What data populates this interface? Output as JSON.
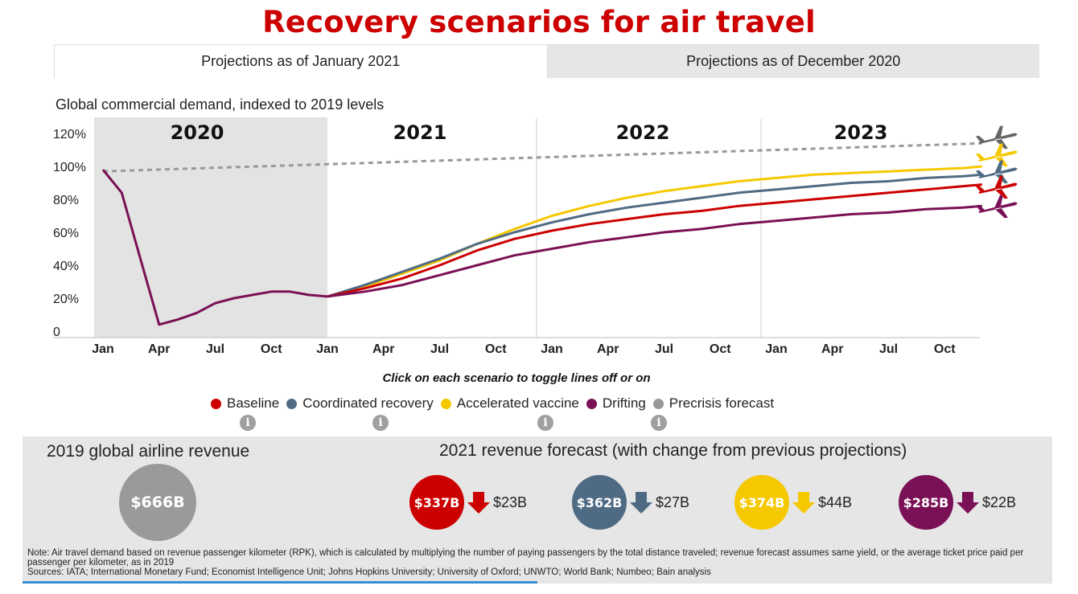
{
  "title": "Recovery scenarios for air travel",
  "tabs": [
    {
      "label": "Projections as of January 2021",
      "active": true
    },
    {
      "label": "Projections as of December 2020",
      "active": false
    }
  ],
  "subtitle": "Global commercial demand, indexed to 2019 levels",
  "hint": "Click on each scenario to toggle lines off or on",
  "legend": [
    {
      "label": "Baseline",
      "color": "#cc0000"
    },
    {
      "label": "Coordinated recovery",
      "color": "#4f6b84"
    },
    {
      "label": "Accelerated vaccine",
      "color": "#f5c800"
    },
    {
      "label": "Drifting",
      "color": "#7a1055"
    },
    {
      "label": "Precrisis forecast",
      "color": "#999999"
    }
  ],
  "info_icon": "i",
  "chart_data": {
    "type": "line",
    "year_labels": [
      "2020",
      "2021",
      "2022",
      "2023"
    ],
    "x_tick_labels": [
      "Jan",
      "Apr",
      "Jul",
      "Oct",
      "Jan",
      "Apr",
      "Jul",
      "Oct",
      "Jan",
      "Apr",
      "Jul",
      "Oct",
      "Jan",
      "Apr",
      "Jul",
      "Oct"
    ],
    "y_tick_labels": [
      "0",
      "20%",
      "40%",
      "60%",
      "80%",
      "100%",
      "120%"
    ],
    "ylim": [
      0,
      125
    ],
    "shaded_period": "2020",
    "x_unit": "months since Jan 2020",
    "historical": {
      "x": [
        0,
        1,
        2,
        3,
        4,
        5,
        6,
        7,
        8,
        9,
        10,
        11,
        12
      ],
      "values": [
        98,
        84,
        44,
        4,
        7,
        11,
        17,
        20,
        22,
        24,
        24,
        22,
        21
      ]
    },
    "series": [
      {
        "name": "Precrisis forecast",
        "color": "#999999",
        "dashed": true,
        "x": [
          0,
          47
        ],
        "values": [
          97,
          114
        ]
      },
      {
        "name": "Accelerated vaccine",
        "color": "#f5c800",
        "x": [
          12,
          14,
          16,
          18,
          20,
          22,
          24,
          26,
          28,
          30,
          32,
          34,
          36,
          38,
          40,
          42,
          44,
          46,
          47
        ],
        "values": [
          21,
          27,
          35,
          43,
          53,
          62,
          70,
          76,
          81,
          85,
          88,
          91,
          93,
          95,
          96,
          97,
          98,
          99,
          100
        ]
      },
      {
        "name": "Coordinated recovery",
        "color": "#4f6b84",
        "x": [
          12,
          14,
          16,
          18,
          20,
          22,
          24,
          26,
          28,
          30,
          32,
          34,
          36,
          38,
          40,
          42,
          44,
          46,
          47
        ],
        "values": [
          21,
          28,
          36,
          44,
          53,
          60,
          66,
          71,
          75,
          78,
          81,
          84,
          86,
          88,
          90,
          91,
          93,
          94,
          95
        ]
      },
      {
        "name": "Baseline",
        "color": "#cc0000",
        "x": [
          12,
          14,
          16,
          18,
          20,
          22,
          24,
          26,
          28,
          30,
          32,
          34,
          36,
          38,
          40,
          42,
          44,
          46,
          47
        ],
        "values": [
          21,
          26,
          32,
          40,
          49,
          56,
          61,
          65,
          68,
          71,
          73,
          76,
          78,
          80,
          82,
          84,
          86,
          88,
          89
        ]
      },
      {
        "name": "Drifting",
        "color": "#7a1055",
        "x": [
          12,
          14,
          16,
          18,
          20,
          22,
          24,
          26,
          28,
          30,
          32,
          34,
          36,
          38,
          40,
          42,
          44,
          46,
          47
        ],
        "values": [
          21,
          24,
          28,
          34,
          40,
          46,
          50,
          54,
          57,
          60,
          62,
          65,
          67,
          69,
          71,
          72,
          74,
          75,
          76
        ]
      }
    ]
  },
  "panel": {
    "left_heading": "2019 global airline revenue",
    "right_heading": "2021 revenue forecast (with change from previous projections)",
    "revenue_2019": {
      "value": "$666B",
      "color": "#9a9a9a"
    },
    "forecasts": [
      {
        "value": "$337B",
        "change": "$23B",
        "color": "#cc0000",
        "direction": "down"
      },
      {
        "value": "$362B",
        "change": "$27B",
        "color": "#4f6b84",
        "direction": "down"
      },
      {
        "value": "$374B",
        "change": "$44B",
        "color": "#f5c800",
        "direction": "down"
      },
      {
        "value": "$285B",
        "change": "$22B",
        "color": "#7a1055",
        "direction": "down"
      }
    ],
    "note": "Note: Air travel demand based on revenue passenger kilometer (RPK), which is calculated by multiplying the number of paying passengers by the total distance traveled; revenue forecast assumes same yield, or the average ticket price paid per passenger per kilometer, as in 2019",
    "sources": "Sources: IATA; International Monetary Fund; Economist Intelligence Unit; Johns Hopkins University; University of Oxford; UNWTO; World Bank; Numbeo; Bain analysis"
  }
}
